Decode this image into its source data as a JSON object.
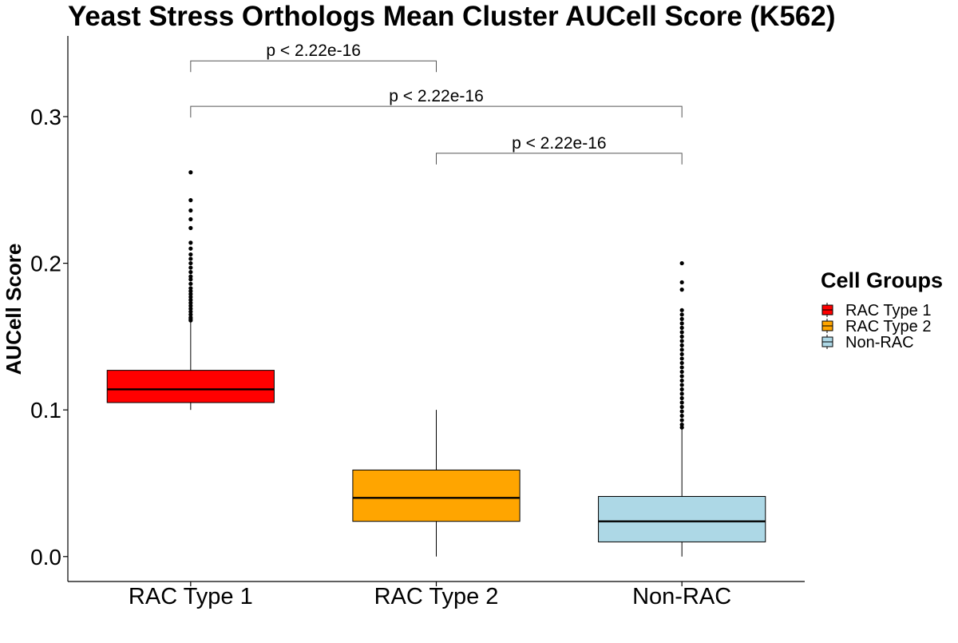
{
  "chart_data": {
    "type": "box",
    "title": "Yeast Stress Orthologs Mean Cluster AUCell Score (K562)",
    "xlabel": "",
    "ylabel": "AUCell Score",
    "ylim": [
      -0.017,
      0.355
    ],
    "yticks": [
      0.0,
      0.1,
      0.2,
      0.3
    ],
    "ytick_labels": [
      "0.0",
      "0.1",
      "0.2",
      "0.3"
    ],
    "grid": false,
    "legend": {
      "title": "Cell Groups",
      "position": "right",
      "entries": [
        "RAC Type 1",
        "RAC Type 2",
        "Non-RAC"
      ]
    },
    "categories": [
      "RAC Type 1",
      "RAC Type 2",
      "Non-RAC"
    ],
    "boxes": [
      {
        "name": "RAC Type 1",
        "color": "#ff0000",
        "whisker_low": 0.1,
        "q1": 0.105,
        "median": 0.114,
        "q3": 0.127,
        "whisker_high": 0.16,
        "outliers": [
          0.262,
          0.243,
          0.236,
          0.23,
          0.224,
          0.214,
          0.21,
          0.206,
          0.203,
          0.2,
          0.197,
          0.194,
          0.191,
          0.189,
          0.186,
          0.183,
          0.181,
          0.179,
          0.177,
          0.175,
          0.173,
          0.171,
          0.169,
          0.167,
          0.165,
          0.163,
          0.162,
          0.161
        ]
      },
      {
        "name": "RAC Type 2",
        "color": "#ffa500",
        "whisker_low": 0.0,
        "q1": 0.024,
        "median": 0.04,
        "q3": 0.059,
        "whisker_high": 0.1,
        "outliers": []
      },
      {
        "name": "Non-RAC",
        "color": "#add8e6",
        "whisker_low": 0.0,
        "q1": 0.01,
        "median": 0.024,
        "q3": 0.041,
        "whisker_high": 0.087,
        "outliers": [
          0.2,
          0.187,
          0.182,
          0.168,
          0.165,
          0.162,
          0.159,
          0.156,
          0.153,
          0.15,
          0.147,
          0.144,
          0.141,
          0.138,
          0.135,
          0.132,
          0.129,
          0.126,
          0.123,
          0.12,
          0.117,
          0.114,
          0.111,
          0.108,
          0.105,
          0.102,
          0.099,
          0.096,
          0.093,
          0.09,
          0.088
        ]
      }
    ],
    "comparisons": [
      {
        "from": "RAC Type 1",
        "to": "RAC Type 2",
        "label": "p < 2.22e-16",
        "y": 0.338
      },
      {
        "from": "RAC Type 1",
        "to": "Non-RAC",
        "label": "p < 2.22e-16",
        "y": 0.307
      },
      {
        "from": "RAC Type 2",
        "to": "Non-RAC",
        "label": "p < 2.22e-16",
        "y": 0.275
      }
    ]
  }
}
